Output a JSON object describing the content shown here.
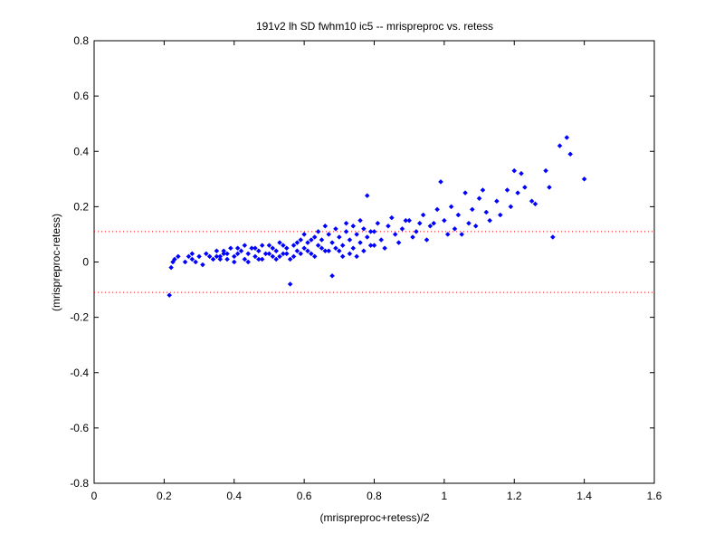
{
  "chart_data": {
    "type": "scatter",
    "title": "191v2 lh SD fwhm10 ic5 -- mrispreproc vs. retess",
    "xlabel": "(mrispreproc+retess)/2",
    "ylabel": "(mrispreproc-retess)",
    "xlim": [
      0,
      1.6
    ],
    "ylim": [
      -0.8,
      0.8
    ],
    "xticks": [
      0,
      0.2,
      0.4,
      0.6,
      0.8,
      1,
      1.2,
      1.4,
      1.6
    ],
    "yticks": [
      -0.8,
      -0.6,
      -0.4,
      -0.2,
      0,
      0.2,
      0.4,
      0.6,
      0.8
    ],
    "xtick_labels": [
      "0",
      "0.2",
      "0.4",
      "0.6",
      "0.8",
      "1",
      "1.2",
      "1.4",
      "1.6"
    ],
    "ytick_labels": [
      "-0.8",
      "-0.6",
      "-0.4",
      "-0.2",
      "0",
      "0.2",
      "0.4",
      "0.6",
      "0.8"
    ],
    "grid": false,
    "reference_lines": [
      0.11,
      -0.11
    ],
    "colors": {
      "points": "#0000ff",
      "reference": "#ff0000",
      "axes": "#000000"
    },
    "series": [
      {
        "marker": "diamond",
        "points": [
          [
            0.215,
            -0.12
          ],
          [
            0.22,
            -0.02
          ],
          [
            0.225,
            0.0
          ],
          [
            0.23,
            0.01
          ],
          [
            0.24,
            0.02
          ],
          [
            0.26,
            0.0
          ],
          [
            0.27,
            0.02
          ],
          [
            0.28,
            0.03
          ],
          [
            0.28,
            0.01
          ],
          [
            0.29,
            0.0
          ],
          [
            0.3,
            0.02
          ],
          [
            0.31,
            -0.01
          ],
          [
            0.32,
            0.03
          ],
          [
            0.33,
            0.02
          ],
          [
            0.34,
            0.01
          ],
          [
            0.35,
            0.04
          ],
          [
            0.36,
            0.02
          ],
          [
            0.37,
            0.03
          ],
          [
            0.38,
            0.01
          ],
          [
            0.39,
            0.05
          ],
          [
            0.4,
            0.02
          ],
          [
            0.41,
            0.03
          ],
          [
            0.42,
            0.04
          ],
          [
            0.43,
            0.01
          ],
          [
            0.44,
            0.03
          ],
          [
            0.45,
            0.05
          ],
          [
            0.46,
            0.02
          ],
          [
            0.47,
            0.04
          ],
          [
            0.48,
            0.01
          ],
          [
            0.49,
            0.03
          ],
          [
            0.5,
            0.06
          ],
          [
            0.51,
            0.02
          ],
          [
            0.52,
            0.04
          ],
          [
            0.53,
            0.07
          ],
          [
            0.54,
            0.03
          ],
          [
            0.55,
            0.05
          ],
          [
            0.56,
            0.01
          ],
          [
            0.57,
            0.06
          ],
          [
            0.58,
            0.04
          ],
          [
            0.59,
            0.08
          ],
          [
            0.6,
            0.05
          ],
          [
            0.61,
            0.07
          ],
          [
            0.62,
            0.03
          ],
          [
            0.63,
            0.09
          ],
          [
            0.64,
            0.06
          ],
          [
            0.65,
            0.08
          ],
          [
            0.66,
            0.04
          ],
          [
            0.67,
            0.1
          ],
          [
            0.68,
            0.07
          ],
          [
            0.69,
            0.05
          ],
          [
            0.7,
            0.09
          ],
          [
            0.71,
            0.06
          ],
          [
            0.72,
            0.11
          ],
          [
            0.73,
            0.08
          ],
          [
            0.74,
            0.05
          ],
          [
            0.75,
            0.1
          ],
          [
            0.76,
            0.07
          ],
          [
            0.77,
            0.12
          ],
          [
            0.78,
            0.09
          ],
          [
            0.79,
            0.06
          ],
          [
            0.8,
            0.11
          ],
          [
            0.82,
            0.08
          ],
          [
            0.84,
            0.13
          ],
          [
            0.86,
            0.1
          ],
          [
            0.88,
            0.12
          ],
          [
            0.9,
            0.15
          ],
          [
            0.92,
            0.11
          ],
          [
            0.94,
            0.17
          ],
          [
            0.96,
            0.13
          ],
          [
            0.98,
            0.19
          ],
          [
            0.99,
            0.29
          ],
          [
            1.0,
            0.15
          ],
          [
            1.02,
            0.2
          ],
          [
            1.04,
            0.17
          ],
          [
            1.06,
            0.25
          ],
          [
            1.08,
            0.19
          ],
          [
            1.1,
            0.23
          ],
          [
            1.12,
            0.18
          ],
          [
            1.15,
            0.22
          ],
          [
            1.18,
            0.26
          ],
          [
            1.2,
            0.33
          ],
          [
            1.22,
            0.32
          ],
          [
            1.25,
            0.22
          ],
          [
            1.29,
            0.33
          ],
          [
            1.3,
            0.27
          ],
          [
            1.31,
            0.09
          ],
          [
            1.35,
            0.45
          ],
          [
            1.36,
            0.39
          ],
          [
            1.4,
            0.3
          ],
          [
            0.35,
            0.02
          ],
          [
            0.36,
            0.01
          ],
          [
            0.37,
            0.04
          ],
          [
            0.38,
            0.03
          ],
          [
            0.4,
            0.0
          ],
          [
            0.41,
            0.05
          ],
          [
            0.43,
            0.06
          ],
          [
            0.44,
            0.0
          ],
          [
            0.46,
            0.05
          ],
          [
            0.47,
            0.01
          ],
          [
            0.48,
            0.06
          ],
          [
            0.5,
            0.03
          ],
          [
            0.51,
            0.05
          ],
          [
            0.52,
            0.01
          ],
          [
            0.53,
            0.02
          ],
          [
            0.54,
            0.06
          ],
          [
            0.55,
            0.03
          ],
          [
            0.56,
            -0.08
          ],
          [
            0.57,
            0.02
          ],
          [
            0.58,
            0.07
          ],
          [
            0.59,
            0.03
          ],
          [
            0.6,
            0.1
          ],
          [
            0.61,
            0.04
          ],
          [
            0.62,
            0.08
          ],
          [
            0.63,
            0.02
          ],
          [
            0.64,
            0.11
          ],
          [
            0.65,
            0.05
          ],
          [
            0.66,
            0.13
          ],
          [
            0.67,
            0.04
          ],
          [
            0.68,
            -0.05
          ],
          [
            0.69,
            0.12
          ],
          [
            0.7,
            0.04
          ],
          [
            0.71,
            0.02
          ],
          [
            0.72,
            0.14
          ],
          [
            0.73,
            0.03
          ],
          [
            0.74,
            0.13
          ],
          [
            0.75,
            0.02
          ],
          [
            0.76,
            0.15
          ],
          [
            0.77,
            0.04
          ],
          [
            0.78,
            0.24
          ],
          [
            0.79,
            0.11
          ],
          [
            0.8,
            0.06
          ],
          [
            0.81,
            0.14
          ],
          [
            0.83,
            0.05
          ],
          [
            0.85,
            0.16
          ],
          [
            0.87,
            0.07
          ],
          [
            0.89,
            0.15
          ],
          [
            0.91,
            0.09
          ],
          [
            0.93,
            0.14
          ],
          [
            0.95,
            0.08
          ],
          [
            0.97,
            0.14
          ],
          [
            1.01,
            0.1
          ],
          [
            1.03,
            0.12
          ],
          [
            1.05,
            0.1
          ],
          [
            1.07,
            0.14
          ],
          [
            1.09,
            0.13
          ],
          [
            1.11,
            0.26
          ],
          [
            1.13,
            0.15
          ],
          [
            1.16,
            0.17
          ],
          [
            1.19,
            0.2
          ],
          [
            1.21,
            0.25
          ],
          [
            1.23,
            0.27
          ],
          [
            1.26,
            0.21
          ],
          [
            1.33,
            0.42
          ]
        ]
      }
    ]
  }
}
